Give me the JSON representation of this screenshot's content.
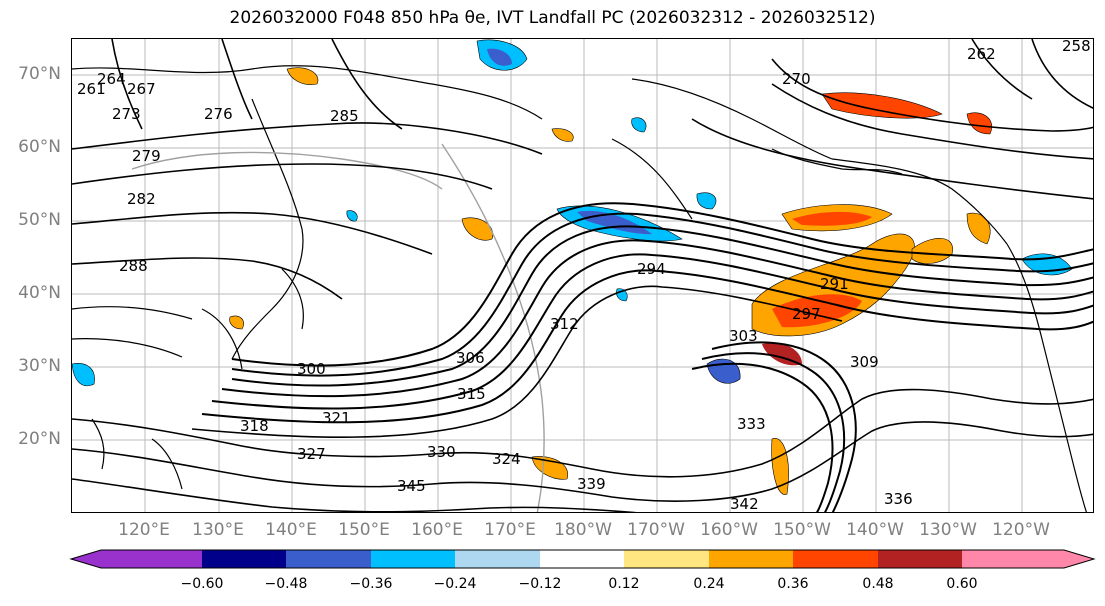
{
  "title": "2026032000 F048 850 hPa θe, IVT Landfall PC (2026032312 - 2026032512)",
  "map": {
    "lat_labels": [
      "70°N",
      "60°N",
      "50°N",
      "40°N",
      "30°N",
      "20°N"
    ],
    "lon_labels": [
      "120°E",
      "130°E",
      "140°E",
      "150°E",
      "160°E",
      "170°E",
      "180°W",
      "170°W",
      "160°W",
      "150°W",
      "140°W",
      "130°W",
      "120°W"
    ],
    "contour_labels": [
      "261",
      "264",
      "267",
      "273",
      "270",
      "276",
      "279",
      "282",
      "285",
      "288",
      "291",
      "294",
      "297",
      "300",
      "303",
      "306",
      "309",
      "312",
      "315",
      "318",
      "321",
      "324",
      "327",
      "330",
      "333",
      "336",
      "339",
      "342",
      "345",
      "258",
      "262"
    ]
  },
  "colorbar": {
    "ticks": [
      "−0.60",
      "−0.48",
      "−0.36",
      "−0.24",
      "−0.12",
      "0.12",
      "0.24",
      "0.36",
      "0.48",
      "0.60"
    ],
    "colors": [
      "#9932cc",
      "#00008b",
      "#3a5fcd",
      "#00bfff",
      "#add8f0",
      "#ffffff",
      "#ffe680",
      "#ffa500",
      "#ff4500",
      "#b22222",
      "#ff88aa"
    ]
  }
}
